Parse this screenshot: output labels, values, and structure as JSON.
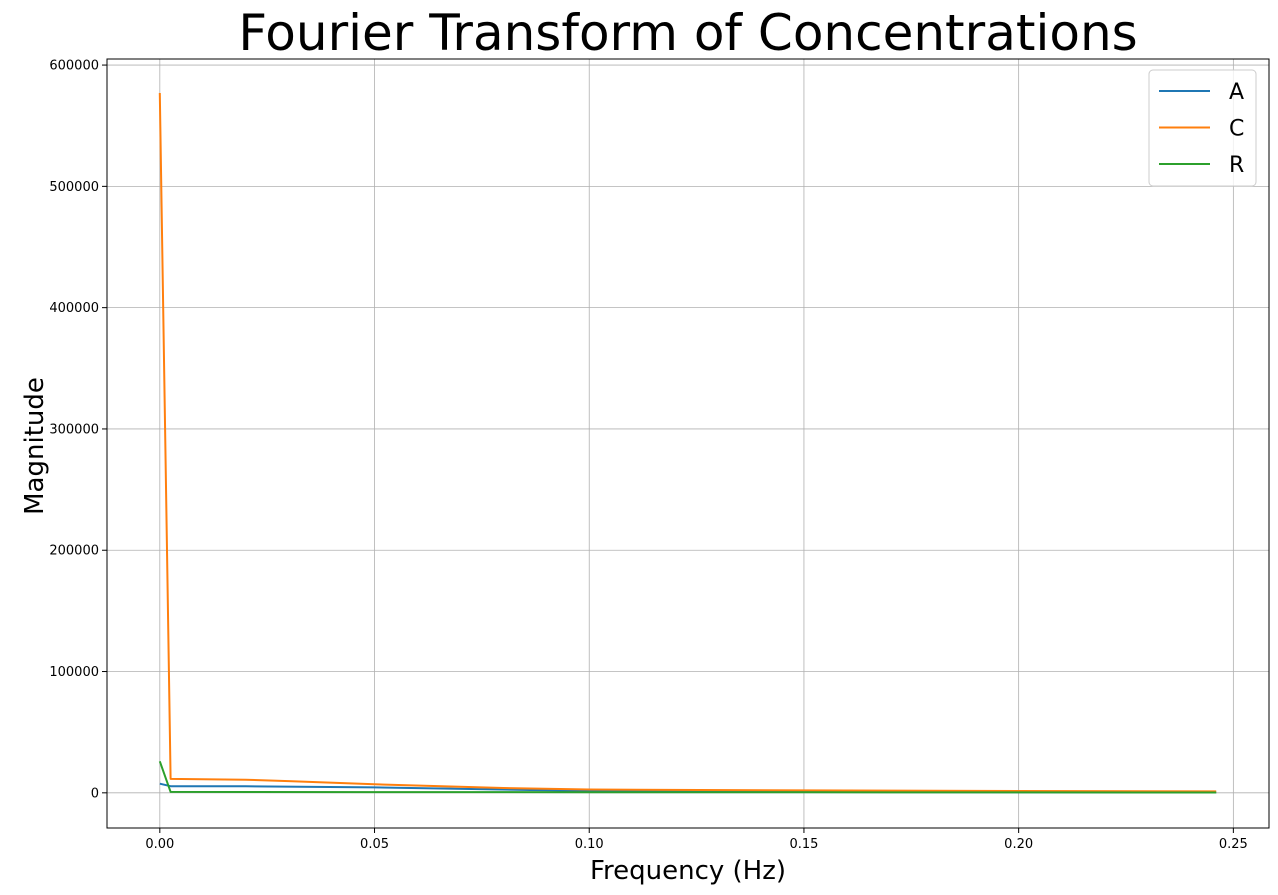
{
  "chart_data": {
    "type": "line",
    "title": "Fourier Transform of Concentrations",
    "xlabel": "Frequency (Hz)",
    "ylabel": "Magnitude",
    "xlim": [
      -0.0123,
      0.2583
    ],
    "ylim": [
      -29000,
      605000
    ],
    "xticks": [
      0.0,
      0.05,
      0.1,
      0.15,
      0.2,
      0.25
    ],
    "xtick_labels": [
      "0.00",
      "0.05",
      "0.10",
      "0.15",
      "0.20",
      "0.25"
    ],
    "yticks": [
      0,
      100000,
      200000,
      300000,
      400000,
      500000,
      600000
    ],
    "ytick_labels": [
      "0",
      "100000",
      "200000",
      "300000",
      "400000",
      "500000",
      "600000"
    ],
    "grid": true,
    "legend_position": "top-right",
    "series": [
      {
        "name": "A",
        "color": "#1f77b4",
        "x": [
          0.0,
          0.0025,
          0.02,
          0.05,
          0.1,
          0.15,
          0.2,
          0.246
        ],
        "y": [
          7500,
          5500,
          5400,
          4500,
          1500,
          800,
          400,
          300
        ]
      },
      {
        "name": "C",
        "color": "#ff7f0e",
        "x": [
          0.0,
          0.0025,
          0.02,
          0.03,
          0.05,
          0.08,
          0.1,
          0.15,
          0.2,
          0.246
        ],
        "y": [
          577000,
          11500,
          10800,
          9700,
          7000,
          4000,
          2700,
          2000,
          1500,
          1200
        ]
      },
      {
        "name": "R",
        "color": "#2ca02c",
        "x": [
          0.0,
          0.0025,
          0.05,
          0.1,
          0.15,
          0.2,
          0.246
        ],
        "y": [
          26000,
          800,
          600,
          500,
          400,
          350,
          300
        ]
      }
    ]
  }
}
